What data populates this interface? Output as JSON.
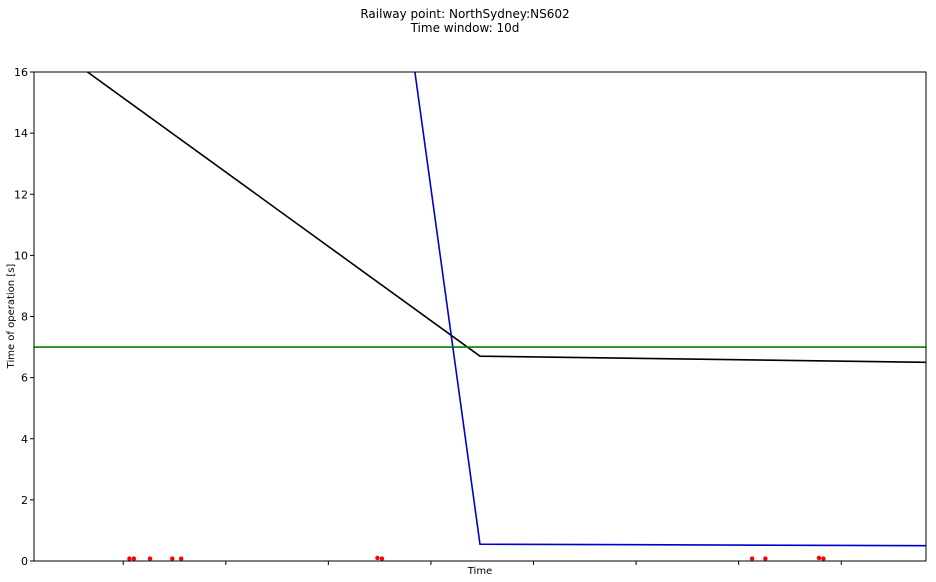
{
  "chart_data": {
    "type": "line",
    "title_lines": [
      "Railway point: NorthSydney:NS602",
      "Time window: 10d"
    ],
    "xlabel": "Time",
    "ylabel": "Time of operation [s]",
    "xlim": [
      0,
      10
    ],
    "ylim": [
      0,
      16
    ],
    "yticks": [
      0,
      2,
      4,
      6,
      8,
      10,
      12,
      14,
      16
    ],
    "xticks": [
      1,
      2.15,
      3.3,
      4.45,
      5.6,
      6.75,
      7.9,
      9.05
    ],
    "grid": false,
    "legend": "none",
    "series": [
      {
        "color": "#000000",
        "x": [
          0.6,
          5.0,
          10.0
        ],
        "y": [
          16.0,
          6.7,
          6.5
        ]
      },
      {
        "color": "#0000cc",
        "x": [
          4.27,
          5.0,
          10.0
        ],
        "y": [
          16.0,
          0.55,
          0.5
        ]
      },
      {
        "color": "#008000",
        "x": [
          0,
          10
        ],
        "y": [
          7.0,
          7.0
        ]
      }
    ],
    "scatter": {
      "color": "#ff0000",
      "x": [
        1.07,
        1.12,
        1.3,
        1.55,
        1.65,
        3.85,
        3.9,
        8.05,
        8.2,
        8.8,
        8.85
      ],
      "y": [
        0.08,
        0.08,
        0.08,
        0.08,
        0.08,
        0.1,
        0.08,
        0.08,
        0.08,
        0.1,
        0.08
      ]
    }
  }
}
